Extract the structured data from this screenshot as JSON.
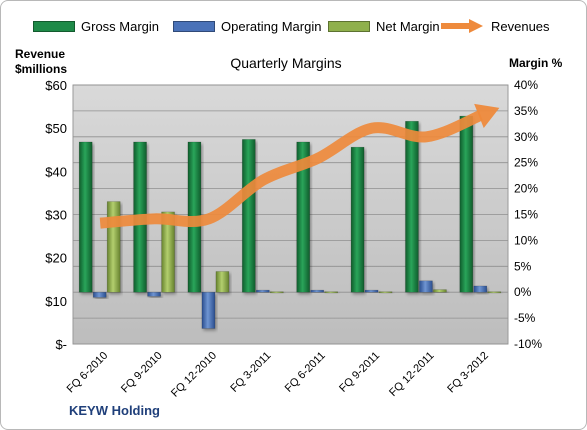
{
  "legend": {
    "gross_margin": "Gross Margin",
    "operating_margin": "Operating Margin",
    "net_margin": "Net Margin",
    "revenues": "Revenues"
  },
  "left_axis_title_line1": "Revenue",
  "left_axis_title_line2": "$millions",
  "right_axis_title": "Margin %",
  "company": "KEYW Holding",
  "colors": {
    "gross": "#1e8a48",
    "operating": "#4a72b8",
    "net": "#8fb04c",
    "revenues": "#ee8a3c",
    "plot_bg": "#cbcbcb"
  },
  "chart_data": {
    "type": "bar",
    "title": "Quarterly Margins",
    "categories": [
      "FQ 6-2010",
      "FQ 9-2010",
      "FQ 12-2010",
      "FQ 3-2011",
      "FQ 6-2011",
      "FQ 9-2011",
      "FQ 12-2011",
      "FQ 3-2012"
    ],
    "y_left": {
      "label": "Revenue $millions",
      "ylim": [
        0,
        60
      ],
      "ticks": [
        "$-",
        "$10",
        "$20",
        "$30",
        "$40",
        "$50",
        "$60"
      ]
    },
    "y_right": {
      "label": "Margin %",
      "ylim": [
        -10,
        40
      ],
      "ticks": [
        "-10%",
        "-5%",
        "0%",
        "5%",
        "10%",
        "15%",
        "20%",
        "25%",
        "30%",
        "35%",
        "40%"
      ]
    },
    "series": [
      {
        "name": "Gross Margin",
        "axis": "right",
        "type": "bar",
        "values": [
          29,
          29,
          29,
          29.5,
          29,
          28,
          33,
          34
        ]
      },
      {
        "name": "Operating Margin",
        "axis": "right",
        "type": "bar",
        "values": [
          -1,
          -0.8,
          -7,
          0.4,
          0.4,
          0.4,
          2.2,
          1.2
        ]
      },
      {
        "name": "Net Margin",
        "axis": "right",
        "type": "bar",
        "values": [
          17.5,
          15.5,
          4,
          0.1,
          0.1,
          0.1,
          0.5,
          0.1
        ]
      },
      {
        "name": "Revenues",
        "axis": "left",
        "type": "line",
        "values": [
          28,
          29,
          29,
          38,
          43,
          50,
          48,
          53
        ]
      }
    ],
    "grid": true
  }
}
